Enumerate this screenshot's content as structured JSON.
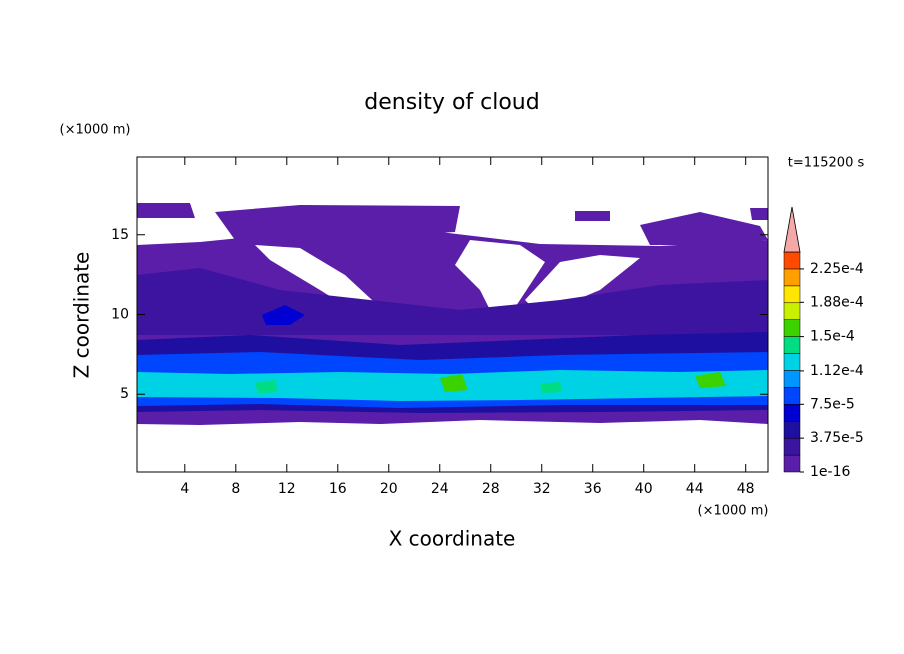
{
  "chart_data": {
    "type": "contour",
    "title": "density of cloud",
    "x_label": "X coordinate",
    "y_label": "Z coordinate",
    "x_unit": "(×1000 m)",
    "y_unit": "(×1000 m)",
    "annotation": "t=115200 s",
    "xlim": [
      0.25,
      49.75
    ],
    "ylim": [
      0.125,
      19.875
    ],
    "xticks": [
      4,
      8,
      12,
      16,
      20,
      24,
      28,
      32,
      36,
      40,
      44,
      48
    ],
    "yticks": [
      5,
      10,
      15
    ],
    "colorbar": {
      "lim": [
        1e-16,
        0.00024375
      ],
      "colors": [
        "#5a1ea8",
        "#3c14a0",
        "#1e0fa0",
        "#0000d2",
        "#0046ff",
        "#0096ff",
        "#00d2e6",
        "#00dc82",
        "#3cd200",
        "#c8f000",
        "#ffe600",
        "#ffa000",
        "#ff4b00"
      ],
      "extend_color": "#f4a8a8",
      "ticks": [
        {
          "value": 1e-16,
          "label": "1e-16"
        },
        {
          "value": 3.75e-05,
          "label": "3.75e-5"
        },
        {
          "value": 7.5e-05,
          "label": "7.5e-5"
        },
        {
          "value": 0.000112,
          "label": "1.12e-4"
        },
        {
          "value": 0.00015,
          "label": "1.5e-4"
        },
        {
          "value": 0.000188,
          "label": "1.88e-4"
        },
        {
          "value": 0.000225,
          "label": "2.25e-4"
        }
      ]
    }
  }
}
